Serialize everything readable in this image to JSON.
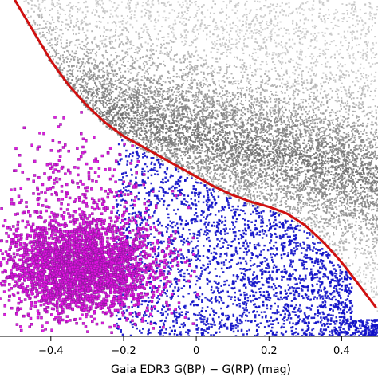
{
  "chart_data": {
    "type": "scatter",
    "xlabel": "Gaia EDR3 G(BP) − G(RP) (mag)",
    "ylabel": "",
    "xlim": [
      -0.54,
      0.5
    ],
    "ylim": [
      0,
      1
    ],
    "x_ticks": [
      {
        "value": -0.4,
        "label": "−0.4"
      },
      {
        "value": -0.2,
        "label": "−0.2"
      },
      {
        "value": 0.0,
        "label": "0"
      },
      {
        "value": 0.2,
        "label": "0.2"
      },
      {
        "value": 0.4,
        "label": "0.4"
      }
    ],
    "y_tick_labels_visible": false,
    "grid": false,
    "series": [
      {
        "role": "background",
        "color": "#8c8c8c",
        "point_count": 9000
      },
      {
        "role": "below-curve",
        "color": "#1010c8",
        "point_count": 2600
      },
      {
        "role": "selected",
        "color": "#e010e0",
        "edge_color": "#8a1a9a",
        "point_count": 3200
      }
    ],
    "curve": {
      "color": "#d01010",
      "x": [
        -0.51,
        -0.45,
        -0.4,
        -0.35,
        -0.3,
        -0.25,
        -0.2,
        -0.15,
        -0.1,
        -0.05,
        0.0,
        0.05,
        0.1,
        0.15,
        0.2,
        0.25,
        0.3,
        0.35,
        0.4,
        0.45,
        0.495
      ],
      "y": [
        1.02,
        0.91,
        0.82,
        0.745,
        0.685,
        0.635,
        0.595,
        0.565,
        0.535,
        0.505,
        0.475,
        0.445,
        0.42,
        0.4,
        0.385,
        0.365,
        0.33,
        0.28,
        0.22,
        0.15,
        0.085
      ]
    }
  }
}
